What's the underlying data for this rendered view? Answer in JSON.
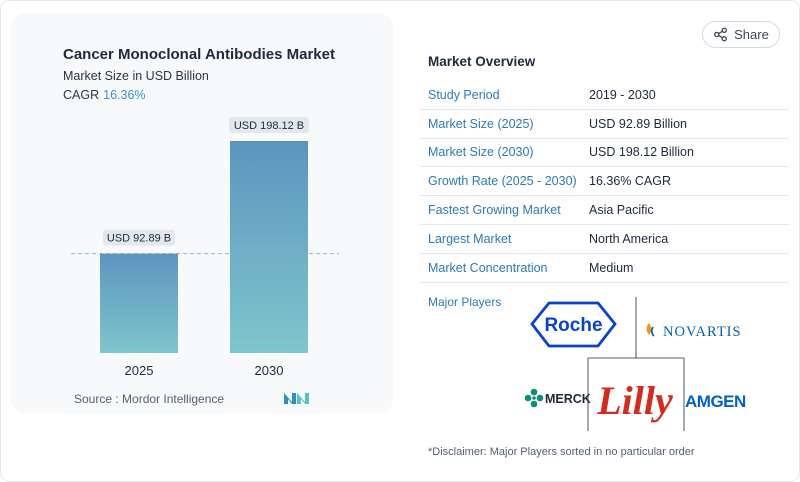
{
  "chart": {
    "title": "Cancer Monoclonal Antibodies Market",
    "subtitle": "Market Size in USD Billion",
    "cagr_label": "CAGR",
    "cagr_value": "16.36%",
    "source": "Source :  Mordor Intelligence"
  },
  "chart_data": {
    "type": "bar",
    "title": "Cancer Monoclonal Antibodies Market",
    "ylabel": "Market Size in USD Billion",
    "categories": [
      "2025",
      "2030"
    ],
    "values": [
      92.89,
      198.12
    ],
    "data_labels": [
      "USD 92.89 B",
      "USD 198.12 B"
    ],
    "ylim": [
      0,
      198.12
    ],
    "grid": false,
    "reference_line_at": 92.89,
    "colors": {
      "bar_top": "#5b95bf",
      "bar_bottom": "#80c6cc",
      "label_bg": "#e3e8ed",
      "line": "#8db8cf"
    }
  },
  "share": {
    "label": "Share"
  },
  "overview": {
    "title": "Market Overview",
    "rows": [
      {
        "key": "Study Period",
        "value": "2019 - 2030"
      },
      {
        "key": "Market Size (2025)",
        "value": "USD 92.89 Billion"
      },
      {
        "key": "Market Size (2030)",
        "value": "USD 198.12 Billion"
      },
      {
        "key": "Growth Rate (2025 - 2030)",
        "value": "16.36% CAGR"
      },
      {
        "key": "Fastest Growing Market",
        "value": "Asia Pacific"
      },
      {
        "key": "Largest Market",
        "value": "North America"
      },
      {
        "key": "Market Concentration",
        "value": "Medium"
      }
    ],
    "major_players_label": "Major Players",
    "logos": {
      "roche": "Roche",
      "novartis": "NOVARTIS",
      "merck": "MERCK",
      "lilly": "Lilly",
      "amgen": "AMGEN"
    },
    "disclaimer": "*Disclaimer: Major Players sorted in no particular order"
  },
  "colors": {
    "accent": "#2b7bb5",
    "cagr": "#3f8fc0",
    "roche": "#0b41cd",
    "lilly": "#d52b1e",
    "merck": "#0c8f7b",
    "amgen": "#0063c3",
    "novartis": "#0460a9"
  }
}
